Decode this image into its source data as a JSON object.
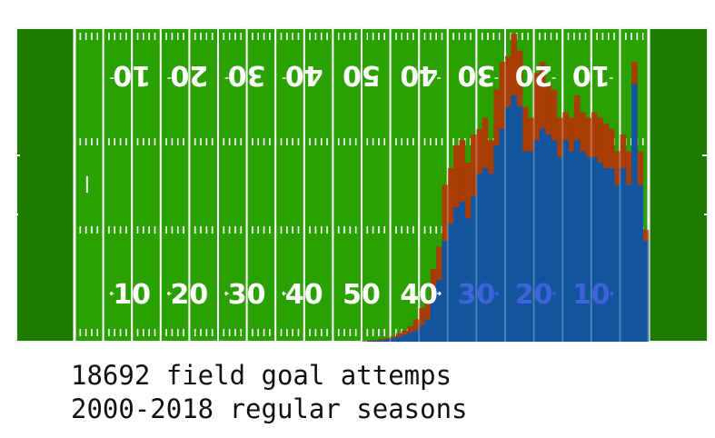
{
  "chart_data": {
    "type": "bar",
    "x_label": "",
    "y_label": "",
    "x_unit": "yard line",
    "x_range": [
      50,
      1
    ],
    "y_range": [
      0,
      56
    ],
    "x": [
      50,
      49,
      48,
      47,
      46,
      45,
      44,
      43,
      42,
      41,
      40,
      39,
      38,
      37,
      36,
      35,
      34,
      33,
      32,
      31,
      30,
      29,
      28,
      27,
      26,
      25,
      24,
      23,
      22,
      21,
      20,
      19,
      18,
      17,
      16,
      15,
      14,
      13,
      12,
      11,
      10,
      9,
      8,
      7,
      6,
      5,
      4,
      3,
      2,
      1
    ],
    "series": [
      {
        "name": "",
        "color": "#a83d05",
        "values": [
          0.1,
          0.2,
          0.3,
          0.5,
          0.7,
          1.0,
          1.5,
          2.0,
          2.8,
          4.0,
          6,
          7,
          13,
          17,
          28,
          31,
          35,
          36,
          32,
          37,
          38,
          40,
          36,
          45,
          50,
          51,
          55,
          52,
          42,
          40,
          48,
          50,
          46,
          45,
          40,
          41,
          40,
          44,
          41,
          40,
          41,
          40,
          39,
          38,
          34,
          37,
          34,
          50,
          34,
          20
        ]
      },
      {
        "name": "",
        "color": "#13549f",
        "values": [
          0.05,
          0.1,
          0.15,
          0.25,
          0.4,
          0.6,
          0.9,
          1.2,
          1.6,
          2.0,
          3,
          4,
          8,
          11,
          18,
          21,
          24,
          25,
          22,
          26,
          30,
          31,
          30,
          35,
          38,
          42,
          44,
          42,
          34,
          34,
          36,
          38,
          37,
          36,
          33,
          36,
          34,
          36,
          34,
          33,
          33,
          32,
          31,
          31,
          28,
          31,
          28,
          46,
          28,
          18
        ]
      }
    ],
    "field": {
      "yard_numbers_bottom": [
        "10",
        "20",
        "30",
        "40",
        "50",
        "40",
        "30",
        "20",
        "10"
      ],
      "yard_numbers_top": [
        "10",
        "20",
        "30",
        "40",
        "50",
        "40",
        "30",
        "20",
        "10"
      ],
      "grass_color": "#2aa100",
      "endzone_color": "#1f7a00",
      "line_color": "#ffffff",
      "faded_number_color": "#3f63d8"
    }
  },
  "caption": {
    "line1": "18692 field goal attemps",
    "line2": "2000-2018 regular seasons"
  }
}
